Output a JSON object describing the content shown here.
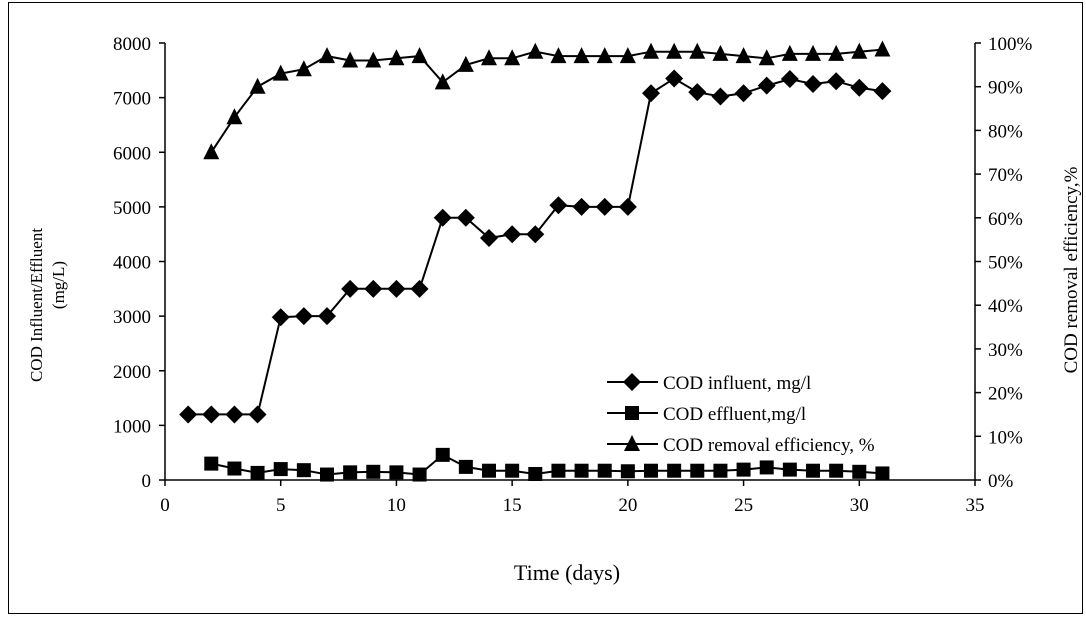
{
  "chart_data": {
    "type": "line",
    "xlabel": "Time (days)",
    "ylabel": "COD Influent/Effluent",
    "ylabel_unit": "(mg/L)",
    "y2label": "COD removal efficiency,%",
    "xlim": [
      0,
      35
    ],
    "ylim": [
      0,
      8000
    ],
    "y2lim": [
      0,
      100
    ],
    "x_ticks": [
      "0",
      "5",
      "10",
      "15",
      "20",
      "25",
      "30",
      "35"
    ],
    "y_ticks": [
      "0",
      "1000",
      "2000",
      "3000",
      "4000",
      "5000",
      "6000",
      "7000",
      "8000"
    ],
    "y2_ticks": [
      "0%",
      "10%",
      "20%",
      "30%",
      "40%",
      "50%",
      "60%",
      "70%",
      "80%",
      "90%",
      "100%"
    ],
    "grid": false,
    "legend_position": "center-right",
    "series": [
      {
        "name": "COD influent, mg/l",
        "axis": "left",
        "marker": "diamond",
        "x": [
          1,
          2,
          3,
          4,
          5,
          6,
          7,
          8,
          9,
          10,
          11,
          12,
          13,
          14,
          15,
          16,
          17,
          18,
          19,
          20,
          21,
          22,
          23,
          24,
          25,
          26,
          27,
          28,
          29,
          30,
          31
        ],
        "values": [
          1200,
          1200,
          1200,
          1200,
          2980,
          3000,
          3000,
          3500,
          3500,
          3500,
          3500,
          4800,
          4800,
          4430,
          4500,
          4500,
          5030,
          5000,
          5000,
          5000,
          7080,
          7350,
          7100,
          7020,
          7080,
          7220,
          7340,
          7250,
          7300,
          7180,
          7120
        ]
      },
      {
        "name": "COD effluent,mg/l",
        "axis": "left",
        "marker": "square",
        "x": [
          2,
          3,
          4,
          5,
          6,
          7,
          8,
          9,
          10,
          11,
          12,
          13,
          14,
          15,
          16,
          17,
          18,
          19,
          20,
          21,
          22,
          23,
          24,
          25,
          26,
          27,
          28,
          29,
          30,
          31
        ],
        "values": [
          300,
          210,
          130,
          200,
          180,
          100,
          140,
          150,
          140,
          100,
          460,
          240,
          170,
          170,
          110,
          170,
          170,
          170,
          160,
          170,
          170,
          170,
          170,
          190,
          230,
          190,
          170,
          170,
          150,
          120
        ]
      },
      {
        "name": "COD removal efficiency, %",
        "axis": "right",
        "marker": "triangle",
        "x": [
          2,
          3,
          4,
          5,
          6,
          7,
          8,
          9,
          10,
          11,
          12,
          13,
          14,
          15,
          16,
          17,
          18,
          19,
          20,
          21,
          22,
          23,
          24,
          25,
          26,
          27,
          28,
          29,
          30,
          31
        ],
        "values": [
          75,
          83,
          90,
          93,
          94,
          97,
          96,
          96,
          96.5,
          97,
          91,
          95,
          96.5,
          96.5,
          98,
          97,
          97,
          97,
          97,
          98,
          98,
          98,
          97.5,
          97,
          96.5,
          97.5,
          97.5,
          97.5,
          98,
          98.5
        ]
      }
    ]
  }
}
